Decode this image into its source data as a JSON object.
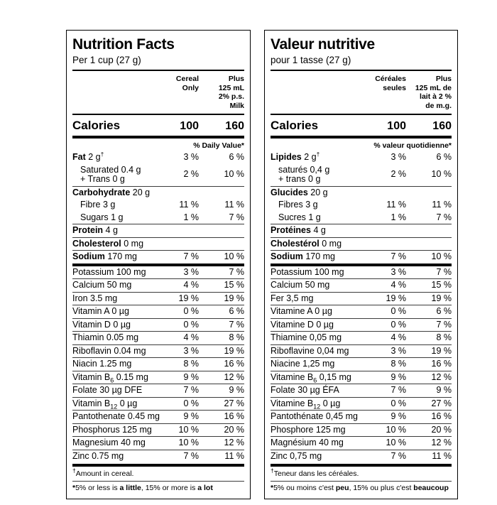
{
  "style": {
    "paper": "#ffffff",
    "ink": "#000000"
  },
  "labels": [
    {
      "lang": "en",
      "title": "Nutrition Facts",
      "serving": "Per 1 cup (27 g)",
      "col1_lines": [
        "Cereal",
        "Only"
      ],
      "col2_lines": [
        "Plus",
        "125 mL",
        "2% p.s.",
        "Milk"
      ],
      "calories_label": "Calories",
      "calories_v1": "100",
      "calories_v2": "160",
      "dv_header": "% Daily Value*",
      "rows": [
        {
          "b": "Fat",
          "t": " 2 g",
          "sup": "†",
          "v1": "3 %",
          "v2": "6 %",
          "top": "none"
        },
        {
          "t": "Saturated 0.4 g",
          "l2": "+ Trans 0 g",
          "ind": true,
          "v1": "2 %",
          "v2": "10 %",
          "top": "none"
        },
        {
          "b": "Carbohydrate",
          "t": " 20 g",
          "v1": "",
          "v2": "",
          "top": "thin"
        },
        {
          "t": "Fibre 3 g",
          "ind": true,
          "v1": "11 %",
          "v2": "11 %",
          "top": "none"
        },
        {
          "t": "Sugars 1 g",
          "ind": true,
          "v1": "1 %",
          "v2": "7 %",
          "top": "none"
        },
        {
          "b": "Protein",
          "t": " 4 g",
          "v1": "",
          "v2": "",
          "top": "thin"
        },
        {
          "b": "Cholesterol",
          "t": " 0 mg",
          "v1": "",
          "v2": "",
          "top": "thin"
        },
        {
          "b": "Sodium",
          "t": " 170 mg",
          "v1": "7 %",
          "v2": "10 %",
          "top": "thin"
        },
        {
          "t": "Potassium 100 mg",
          "v1": "3 %",
          "v2": "7 %",
          "top": "thick"
        },
        {
          "t": "Calcium 50 mg",
          "v1": "4 %",
          "v2": "15 %",
          "top": "thin"
        },
        {
          "t": "Iron 3.5 mg",
          "v1": "19 %",
          "v2": "19 %",
          "top": "thin"
        },
        {
          "t": "Vitamin A 0 µg",
          "v1": "0 %",
          "v2": "6 %",
          "top": "thin"
        },
        {
          "t": "Vitamin D 0 µg",
          "v1": "0 %",
          "v2": "7 %",
          "top": "thin"
        },
        {
          "t": "Thiamin 0.05 mg",
          "v1": "4 %",
          "v2": "8 %",
          "top": "thin"
        },
        {
          "t": "Riboflavin 0.04 mg",
          "v1": "3 %",
          "v2": "19 %",
          "top": "thin"
        },
        {
          "t": "Niacin 1.25 mg",
          "v1": "8 %",
          "v2": "16 %",
          "top": "thin"
        },
        {
          "t": "Vitamin B",
          "sub": "6",
          "t2": " 0.15 mg",
          "v1": "9 %",
          "v2": "12 %",
          "top": "thin"
        },
        {
          "t": "Folate 30 µg DFE",
          "v1": "7 %",
          "v2": "9 %",
          "top": "thin"
        },
        {
          "t": "Vitamin B",
          "sub": "12",
          "t2": " 0 µg",
          "v1": "0 %",
          "v2": "27 %",
          "top": "thin"
        },
        {
          "t": "Pantothenate 0.45 mg",
          "v1": "9 %",
          "v2": "16 %",
          "top": "thin"
        },
        {
          "t": "Phosphorus 125 mg",
          "v1": "10 %",
          "v2": "20 %",
          "top": "thin"
        },
        {
          "t": "Magnesium 40 mg",
          "v1": "10 %",
          "v2": "12 %",
          "top": "thin"
        },
        {
          "t": "Zinc 0.75 mg",
          "v1": "7 %",
          "v2": "11 %",
          "top": "thin"
        }
      ],
      "fn1_sym": "†",
      "fn1_text": "Amount in cereal.",
      "fn2": {
        "sym": "*",
        "p0": "5% or less is ",
        "b0": "a little",
        "p1": ", 15% or more is ",
        "b1": "a lot"
      }
    },
    {
      "lang": "fr",
      "title": "Valeur nutritive",
      "serving": "pour 1 tasse (27 g)",
      "col1_lines": [
        "Céréales",
        "seules"
      ],
      "col2_lines": [
        "Plus",
        "125 mL de",
        "lait à 2 %",
        "de m.g."
      ],
      "calories_label": "Calories",
      "calories_v1": "100",
      "calories_v2": "160",
      "dv_header": "% valeur quotidienne*",
      "rows": [
        {
          "b": "Lipides",
          "t": " 2 g",
          "sup": "†",
          "v1": "3 %",
          "v2": "6 %",
          "top": "none"
        },
        {
          "t": "saturés 0,4 g",
          "l2": "+ trans 0 g",
          "ind": true,
          "v1": "2 %",
          "v2": "10 %",
          "top": "none"
        },
        {
          "b": "Glucides",
          "t": " 20 g",
          "v1": "",
          "v2": "",
          "top": "thin"
        },
        {
          "t": "Fibres 3 g",
          "ind": true,
          "v1": "11 %",
          "v2": "11 %",
          "top": "none"
        },
        {
          "t": "Sucres 1 g",
          "ind": true,
          "v1": "1 %",
          "v2": "7 %",
          "top": "none"
        },
        {
          "b": "Protéines",
          "t": " 4 g",
          "v1": "",
          "v2": "",
          "top": "thin"
        },
        {
          "b": "Cholestérol",
          "t": " 0 mg",
          "v1": "",
          "v2": "",
          "top": "thin"
        },
        {
          "b": "Sodium",
          "t": " 170 mg",
          "v1": "7 %",
          "v2": "10 %",
          "top": "thin"
        },
        {
          "t": "Potassium 100 mg",
          "v1": "3 %",
          "v2": "7 %",
          "top": "thick"
        },
        {
          "t": "Calcium 50 mg",
          "v1": "4 %",
          "v2": "15 %",
          "top": "thin"
        },
        {
          "t": "Fer 3,5 mg",
          "v1": "19 %",
          "v2": "19 %",
          "top": "thin"
        },
        {
          "t": "Vitamine A 0 µg",
          "v1": "0 %",
          "v2": "6 %",
          "top": "thin"
        },
        {
          "t": "Vitamine D 0 µg",
          "v1": "0 %",
          "v2": "7 %",
          "top": "thin"
        },
        {
          "t": "Thiamine 0,05 mg",
          "v1": "4 %",
          "v2": "8 %",
          "top": "thin"
        },
        {
          "t": "Riboflavine 0,04 mg",
          "v1": "3 %",
          "v2": "19 %",
          "top": "thin"
        },
        {
          "t": "Niacine 1,25 mg",
          "v1": "8 %",
          "v2": "16 %",
          "top": "thin"
        },
        {
          "t": "Vitamine B",
          "sub": "6",
          "t2": " 0,15 mg",
          "v1": "9 %",
          "v2": "12 %",
          "top": "thin"
        },
        {
          "t": "Folate 30 µg ÉFA",
          "v1": "7 %",
          "v2": "9 %",
          "top": "thin"
        },
        {
          "t": "Vitamine B",
          "sub": "12",
          "t2": " 0 µg",
          "v1": "0 %",
          "v2": "27 %",
          "top": "thin"
        },
        {
          "t": "Pantothénate 0,45 mg",
          "v1": "9 %",
          "v2": "16 %",
          "top": "thin"
        },
        {
          "t": "Phosphore 125 mg",
          "v1": "10 %",
          "v2": "20 %",
          "top": "thin"
        },
        {
          "t": "Magnésium 40 mg",
          "v1": "10 %",
          "v2": "12 %",
          "top": "thin"
        },
        {
          "t": "Zinc 0,75 mg",
          "v1": "7 %",
          "v2": "11 %",
          "top": "thin"
        }
      ],
      "fn1_sym": "†",
      "fn1_text": "Teneur dans les céréales.",
      "fn2": {
        "sym": "*",
        "p0": "5% ou moins c'est ",
        "b0": "peu",
        "p1": ", 15% ou plus c'est ",
        "b1": "beaucoup"
      }
    }
  ]
}
